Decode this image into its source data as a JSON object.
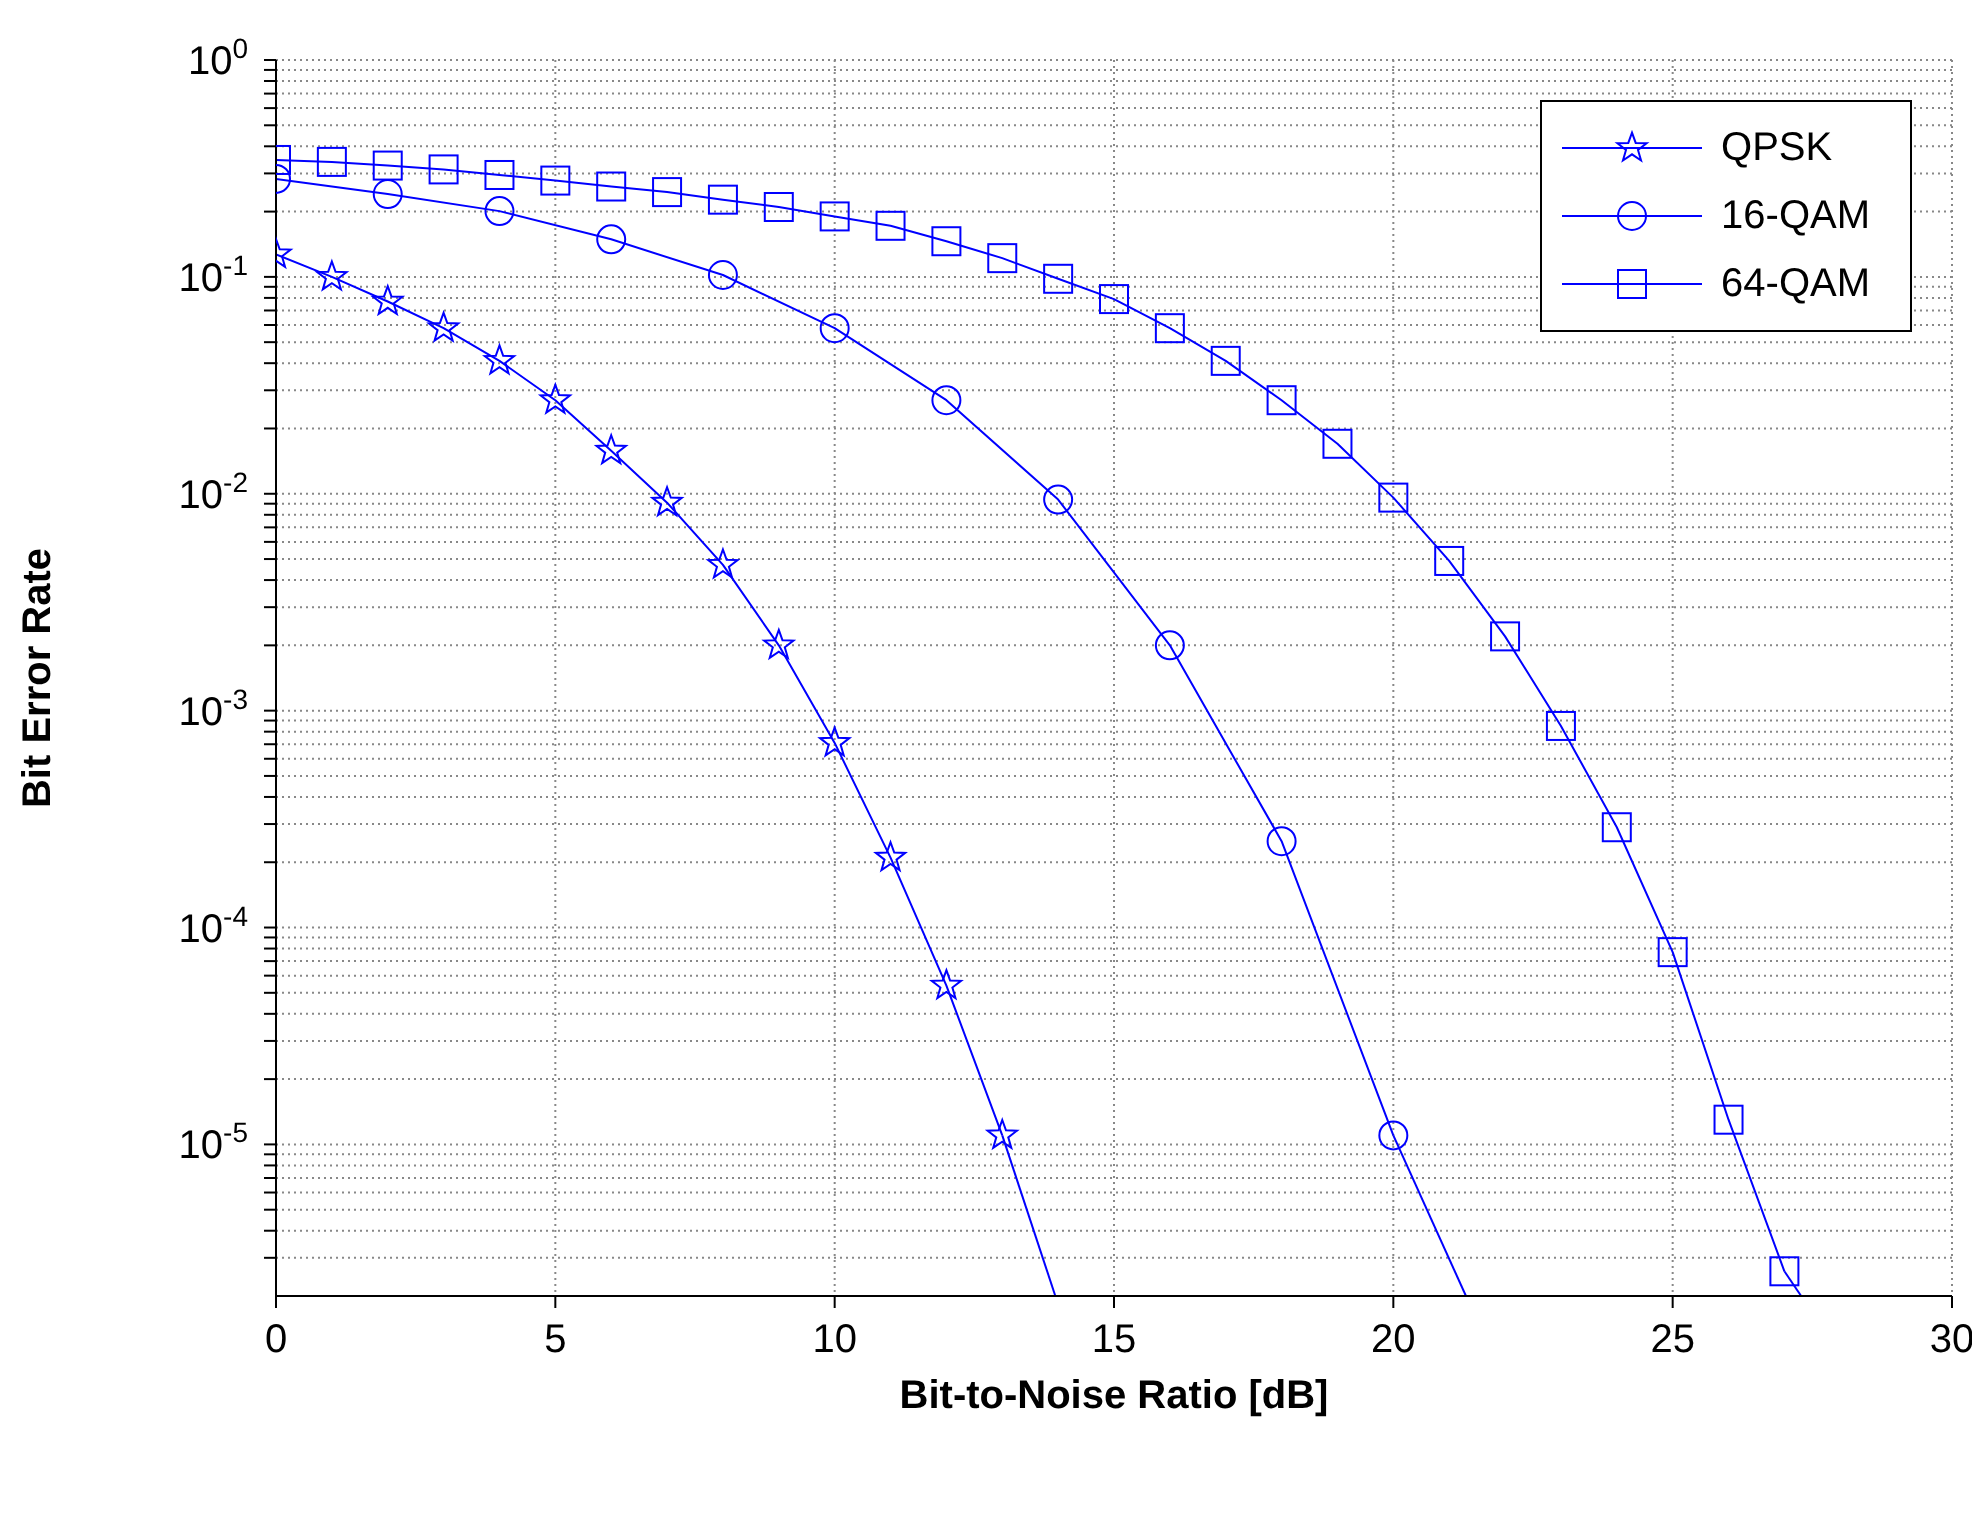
{
  "chart_data": {
    "type": "line",
    "xlabel": "Bit-to-Noise Ratio [dB]",
    "ylabel": "Bit Error Rate",
    "log": "y",
    "grid": true,
    "legend": "top right",
    "xlim": [
      0,
      30
    ],
    "xticks": [
      0,
      5,
      10,
      15,
      20,
      25,
      30
    ],
    "ylim": [
      2e-06,
      1
    ],
    "yticks": [
      {
        "value": 1,
        "label": "10$^{0}$"
      },
      {
        "value": 0.1,
        "label": "10$^{-1}$"
      },
      {
        "value": 0.01,
        "label": "10$^{-2}$"
      },
      {
        "value": 0.001,
        "label": "10$^{-3}$"
      },
      {
        "value": 0.0001,
        "label": "10$^{-4}$"
      },
      {
        "value": 1e-05,
        "label": "10$^{-5}$"
      },
      {
        "value": 0.9,
        "label": null
      },
      {
        "value": 0.8,
        "label": null
      },
      {
        "value": 0.7,
        "label": null
      },
      {
        "value": 0.6,
        "label": null
      },
      {
        "value": 0.5,
        "label": null
      },
      {
        "value": 0.4,
        "label": null
      },
      {
        "value": 0.3,
        "label": null
      },
      {
        "value": 0.2,
        "label": null
      },
      {
        "value": 0.09,
        "label": null
      },
      {
        "value": 0.08,
        "label": null
      },
      {
        "value": 0.07,
        "label": null
      },
      {
        "value": 0.06,
        "label": null
      },
      {
        "value": 0.05,
        "label": null
      },
      {
        "value": 0.04,
        "label": null
      },
      {
        "value": 0.03,
        "label": null
      },
      {
        "value": 0.02,
        "label": null
      },
      {
        "value": 0.009,
        "label": null
      },
      {
        "value": 0.008,
        "label": null
      },
      {
        "value": 0.007,
        "label": null
      },
      {
        "value": 0.006,
        "label": null
      },
      {
        "value": 0.005,
        "label": null
      },
      {
        "value": 0.004,
        "label": null
      },
      {
        "value": 0.003,
        "label": null
      },
      {
        "value": 0.002,
        "label": null
      },
      {
        "value": 0.0009,
        "label": null
      },
      {
        "value": 0.0008,
        "label": null
      },
      {
        "value": 0.0007,
        "label": null
      },
      {
        "value": 0.0006,
        "label": null
      },
      {
        "value": 0.0005,
        "label": null
      },
      {
        "value": 0.0004,
        "label": null
      },
      {
        "value": 0.0003,
        "label": null
      },
      {
        "value": 0.0002,
        "label": null
      },
      {
        "value": 9e-05,
        "label": null
      },
      {
        "value": 8e-05,
        "label": null
      },
      {
        "value": 7e-05,
        "label": null
      },
      {
        "value": 6e-05,
        "label": null
      },
      {
        "value": 5e-05,
        "label": null
      },
      {
        "value": 4e-05,
        "label": null
      },
      {
        "value": 3e-05,
        "label": null
      },
      {
        "value": 2e-05,
        "label": null
      },
      {
        "value": 9e-06,
        "label": null
      },
      {
        "value": 8e-06,
        "label": null
      },
      {
        "value": 7e-06,
        "label": null
      },
      {
        "value": 6e-06,
        "label": null
      },
      {
        "value": 5e-06,
        "label": null
      },
      {
        "value": 4e-06,
        "label": null
      },
      {
        "value": 3e-06,
        "label": null
      }
    ],
    "series": [
      {
        "name": "QPSK",
        "color": "#0000ff",
        "marker": "star",
        "x": [
          0,
          1,
          2,
          3,
          4,
          5,
          6,
          7,
          8,
          9,
          10,
          11,
          12,
          13
        ],
        "values": [
          0.127,
          0.1,
          0.077,
          0.058,
          0.041,
          0.027,
          0.0158,
          0.0091,
          0.0047,
          0.002,
          0.00071,
          0.00021,
          5.4e-05,
          1.1e-05
        ]
      },
      {
        "name": "16-QAM",
        "color": "#0000ff",
        "marker": "circle",
        "x": [
          0,
          2,
          4,
          6,
          8,
          10,
          12,
          14,
          16,
          18,
          20
        ],
        "values": [
          0.283,
          0.241,
          0.201,
          0.149,
          0.102,
          0.058,
          0.027,
          0.0094,
          0.002,
          0.00025,
          1.1e-05
        ]
      },
      {
        "name": "64-QAM",
        "color": "#0000ff",
        "marker": "square",
        "x": [
          0,
          1,
          2,
          3,
          4,
          5,
          6,
          7,
          8,
          9,
          10,
          11,
          12,
          13,
          14,
          15,
          16,
          17,
          18,
          19,
          20,
          21,
          22,
          23,
          24,
          25,
          26,
          27
        ],
        "values": [
          0.346,
          0.339,
          0.326,
          0.313,
          0.295,
          0.278,
          0.261,
          0.246,
          0.227,
          0.21,
          0.19,
          0.172,
          0.146,
          0.122,
          0.098,
          0.079,
          0.058,
          0.041,
          0.027,
          0.017,
          0.0096,
          0.0049,
          0.0022,
          0.00085,
          0.00029,
          7.7e-05,
          1.3e-05,
          2.6e-06
        ]
      },
      {
        "color": "#0000ff",
        "marker": "none",
        "x": [
          13,
          13.95
        ],
        "values": [
          1.1e-05,
          2e-06
        ]
      },
      {
        "color": "#0000ff",
        "marker": "none",
        "x": [
          20,
          21.3
        ],
        "values": [
          1.1e-05,
          2e-06
        ]
      },
      {
        "color": "#0000ff",
        "marker": "none",
        "x": [
          27,
          27.3
        ],
        "values": [
          2.6e-06,
          2e-06
        ]
      }
    ]
  }
}
